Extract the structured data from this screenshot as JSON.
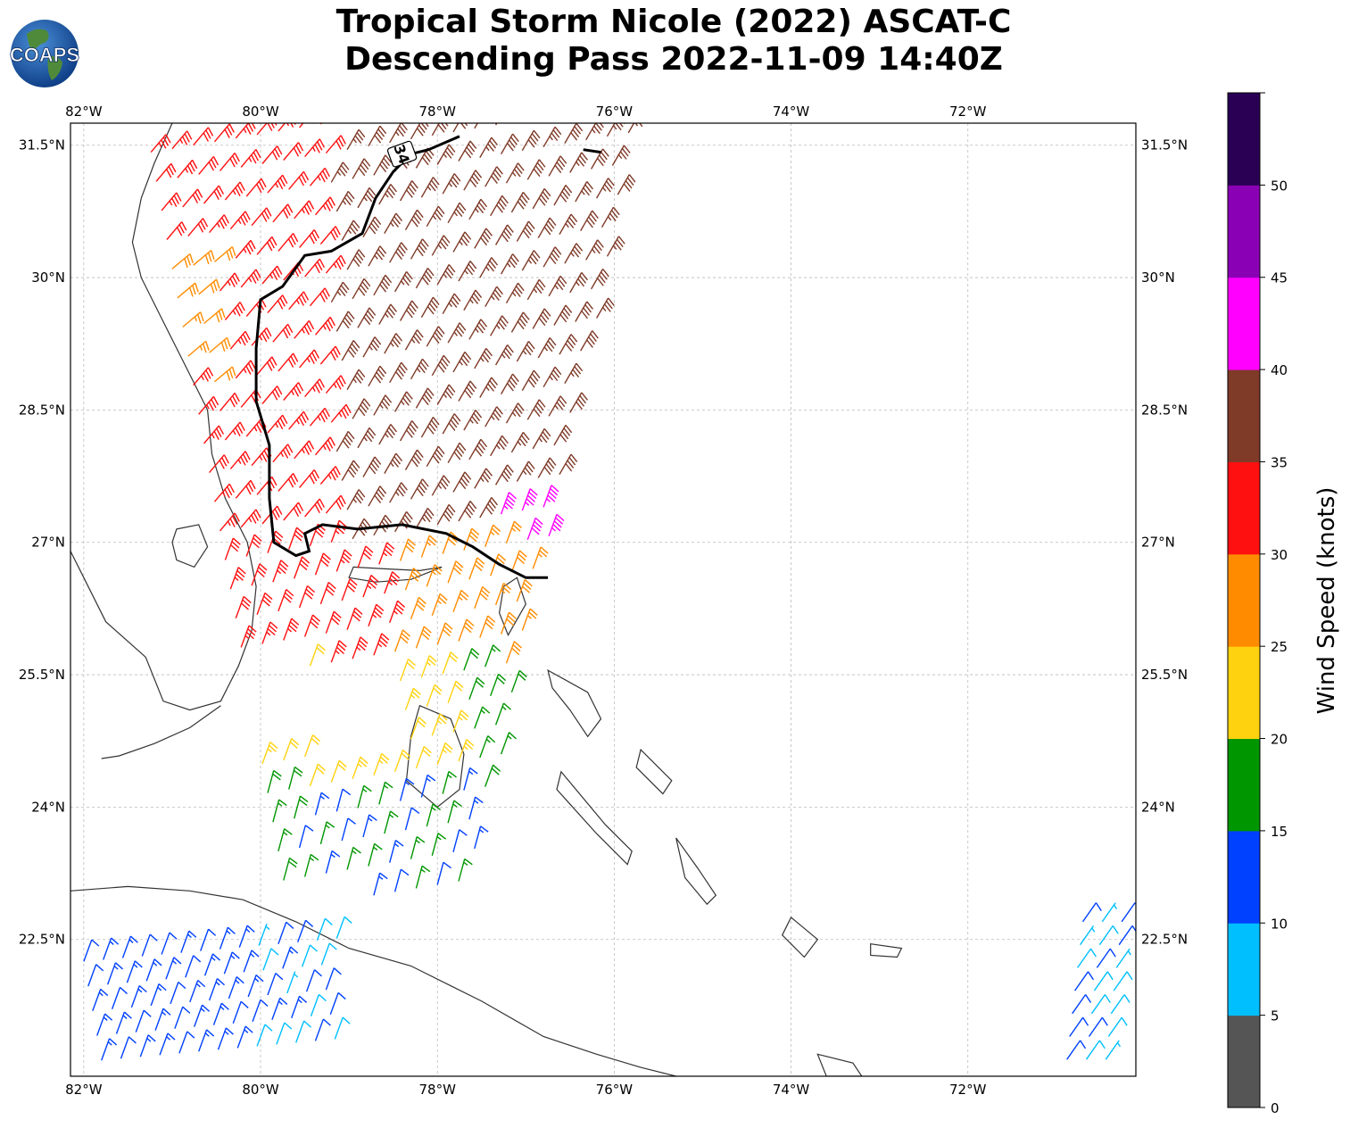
{
  "title": {
    "line1": "Tropical Storm Nicole (2022) ASCAT-C",
    "line2": "Descending Pass 2022-11-09 14:40Z"
  },
  "logo": {
    "text": "COAPS",
    "icon": "globe-logo"
  },
  "map": {
    "lon_range": [
      -82.15,
      -70.1
    ],
    "lat_range": [
      20.95,
      31.75
    ],
    "lon_ticks": [
      "82°W",
      "80°W",
      "78°W",
      "76°W",
      "74°W",
      "72°W"
    ],
    "lat_ticks": [
      "31.5°N",
      "30°N",
      "28.5°N",
      "27°N",
      "25.5°N",
      "24°N",
      "22.5°N"
    ],
    "gridlines": true,
    "contour_label": "34",
    "contour_description": "34-knot wind radius line",
    "symbol": "wind barbs colored by speed"
  },
  "colorbar": {
    "label": "Wind Speed (knots)",
    "ticks": [
      "0",
      "5",
      "10",
      "15",
      "20",
      "25",
      "30",
      "35",
      "40",
      "45",
      "50"
    ],
    "colors": [
      "#555555",
      "#00bfff",
      "#0040ff",
      "#009600",
      "#ffd210",
      "#ff8c00",
      "#ff1010",
      "#7f3a28",
      "#ff00ff",
      "#8a00b4",
      "#2a0055"
    ]
  }
}
